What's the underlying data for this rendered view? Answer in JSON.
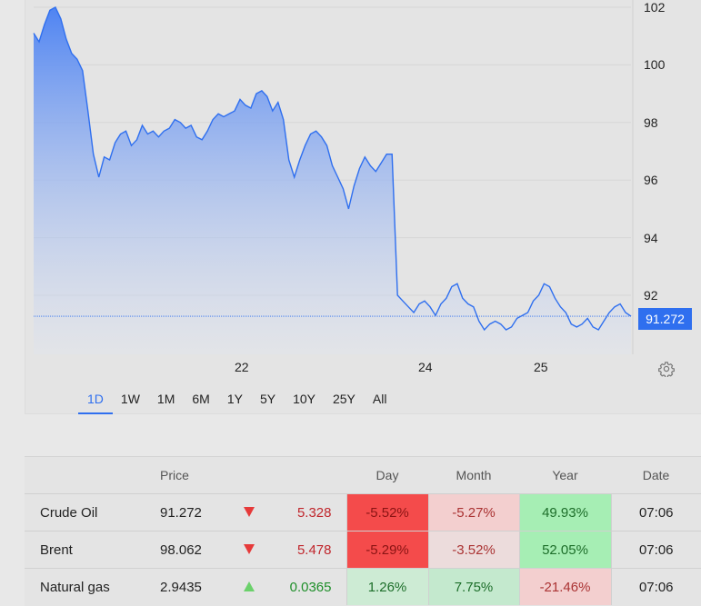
{
  "chart": {
    "last_price": "91.272",
    "y_ticks": [
      "102",
      "100",
      "98",
      "96",
      "94",
      "92"
    ],
    "x_ticks": [
      "22",
      "24",
      "25"
    ]
  },
  "range_tabs": [
    {
      "label": "1D",
      "active": true
    },
    {
      "label": "1W",
      "active": false
    },
    {
      "label": "1M",
      "active": false
    },
    {
      "label": "6M",
      "active": false
    },
    {
      "label": "1Y",
      "active": false
    },
    {
      "label": "5Y",
      "active": false
    },
    {
      "label": "10Y",
      "active": false
    },
    {
      "label": "25Y",
      "active": false
    },
    {
      "label": "All",
      "active": false
    }
  ],
  "table": {
    "headers": [
      "",
      "Price",
      "",
      "",
      "Day",
      "Month",
      "Year",
      "Date"
    ],
    "rows": [
      {
        "name": "Crude Oil",
        "price": "91.272",
        "direction": "down",
        "change": "5.328",
        "day": "-5.52%",
        "month": "-5.27%",
        "year": "49.93%",
        "date": "07:06"
      },
      {
        "name": "Brent",
        "price": "98.062",
        "direction": "down",
        "change": "5.478",
        "day": "-5.29%",
        "month": "-3.52%",
        "year": "52.05%",
        "date": "07:06"
      },
      {
        "name": "Natural gas",
        "price": "2.9435",
        "direction": "up",
        "change": "0.0365",
        "day": "1.26%",
        "month": "7.75%",
        "year": "-21.46%",
        "date": "07:06"
      }
    ]
  },
  "colors": {
    "accent": "#2f6fef",
    "strong_negative": "#f44b4b",
    "light_negative": "#f3cfcf",
    "strong_positive": "#a6eeb4",
    "light_positive": "#cdebd4",
    "negative_text": "#c0262c",
    "positive_text": "#1f8f2a"
  },
  "icons": {
    "settings": "gear-icon",
    "down": "triangle-down-icon",
    "up": "triangle-up-icon"
  },
  "chart_data": {
    "type": "area",
    "ylim": [
      90,
      102.3
    ],
    "y_ticks": [
      92,
      94,
      96,
      98,
      100,
      102
    ],
    "x_tick_labels": [
      "22",
      "24",
      "25"
    ],
    "last_value": 91.272,
    "series": [
      {
        "values": [
          101.1,
          100.8,
          101.4,
          101.9,
          102.0,
          101.6,
          100.9,
          100.4,
          100.2,
          99.8,
          98.4,
          96.9,
          96.1,
          96.8,
          96.7,
          97.3,
          97.6,
          97.7,
          97.2,
          97.4,
          97.9,
          97.6,
          97.7,
          97.5,
          97.7,
          97.8,
          98.1,
          98.0,
          97.8,
          97.9,
          97.5,
          97.4,
          97.7,
          98.1,
          98.3,
          98.2,
          98.3,
          98.4,
          98.8,
          98.6,
          98.5,
          99.0,
          99.1,
          98.9,
          98.4,
          98.7,
          98.1,
          96.7,
          96.1,
          96.7,
          97.2,
          97.6,
          97.7,
          97.5,
          97.2,
          96.5,
          96.1,
          95.7,
          95.0,
          95.8,
          96.4,
          96.8,
          96.5,
          96.3,
          96.6,
          96.9,
          96.9,
          92.0,
          91.8,
          91.6,
          91.4,
          91.7,
          91.8,
          91.6,
          91.3,
          91.7,
          91.9,
          92.3,
          92.4,
          91.9,
          91.7,
          91.6,
          91.1,
          90.8,
          91.0,
          91.1,
          91.0,
          90.8,
          90.9,
          91.2,
          91.3,
          91.4,
          91.8,
          92.0,
          92.4,
          92.3,
          91.9,
          91.6,
          91.4,
          91.0,
          90.9,
          91.0,
          91.2,
          90.9,
          90.8,
          91.1,
          91.4,
          91.6,
          91.7,
          91.4,
          91.272
        ]
      }
    ]
  }
}
